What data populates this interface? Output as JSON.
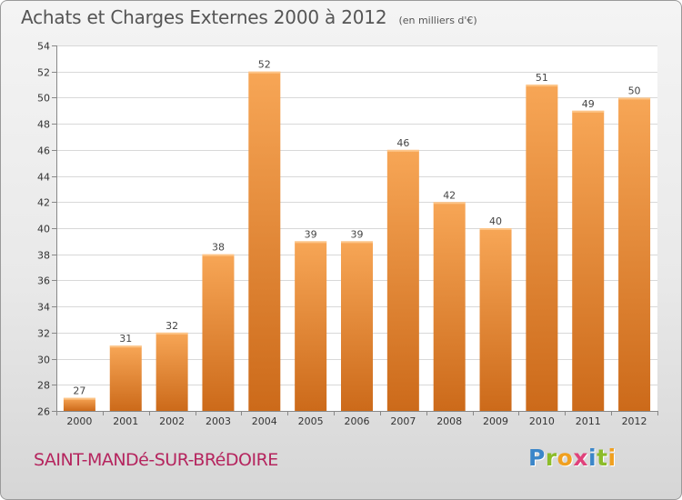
{
  "chart_data": {
    "type": "bar",
    "title": "Achats et Charges Externes 2000 à 2012",
    "subtitle": "(en milliers d'€)",
    "categories": [
      "2000",
      "2001",
      "2002",
      "2003",
      "2004",
      "2005",
      "2006",
      "2007",
      "2008",
      "2009",
      "2010",
      "2011",
      "2012"
    ],
    "values": [
      27,
      31,
      32,
      38,
      52,
      39,
      39,
      46,
      42,
      40,
      51,
      49,
      50
    ],
    "ylim": [
      26,
      54
    ],
    "yticks": [
      26,
      28,
      30,
      32,
      34,
      36,
      38,
      40,
      42,
      44,
      46,
      48,
      50,
      52,
      54
    ],
    "grid": true,
    "bar_color_top": "#f7a656",
    "bar_color_bottom": "#cc6a1a"
  },
  "footer": {
    "commune": "SAINT-MANDé-SUR-BRéDOIRE",
    "brand_letters": [
      {
        "ch": "P",
        "color": "#3b86c9"
      },
      {
        "ch": "r",
        "color": "#8cbc2a"
      },
      {
        "ch": "o",
        "color": "#f0a020"
      },
      {
        "ch": "x",
        "color": "#e0427b"
      },
      {
        "ch": "i",
        "color": "#3b86c9"
      },
      {
        "ch": "t",
        "color": "#8cbc2a"
      },
      {
        "ch": "i",
        "color": "#f0a020"
      }
    ]
  }
}
